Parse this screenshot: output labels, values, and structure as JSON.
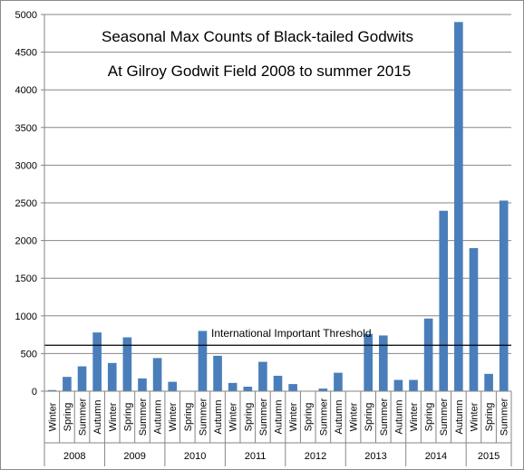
{
  "chart_data": {
    "type": "bar",
    "title": "Seasonal Max Counts of Black-tailed Godwits",
    "subtitle": "At Gilroy Godwit Field 2008 to summer 2015",
    "xlabel": "",
    "ylabel": "",
    "ylim": [
      0,
      5000
    ],
    "yticks": [
      "0",
      "500",
      "1000",
      "1500",
      "2000",
      "2500",
      "3000",
      "3500",
      "4000",
      "4500",
      "5000"
    ],
    "grid": "horizontal",
    "bar_color": "#4a7ebb",
    "years": [
      "2008",
      "2009",
      "2010",
      "2011",
      "2012",
      "2013",
      "2014",
      "2015"
    ],
    "categories": [
      {
        "season": "Winter",
        "year": "2008",
        "value": 15
      },
      {
        "season": "Spring",
        "year": "2008",
        "value": 190
      },
      {
        "season": "Summer",
        "year": "2008",
        "value": 330
      },
      {
        "season": "Autumn",
        "year": "2008",
        "value": 780
      },
      {
        "season": "Winter",
        "year": "2009",
        "value": 375
      },
      {
        "season": "Spring",
        "year": "2009",
        "value": 715
      },
      {
        "season": "Summer",
        "year": "2009",
        "value": 170
      },
      {
        "season": "Autumn",
        "year": "2009",
        "value": 440
      },
      {
        "season": "Winter",
        "year": "2010",
        "value": 125
      },
      {
        "season": "Spring",
        "year": "2010",
        "value": 0
      },
      {
        "season": "Summer",
        "year": "2010",
        "value": 800
      },
      {
        "season": "Autumn",
        "year": "2010",
        "value": 470
      },
      {
        "season": "Winter",
        "year": "2011",
        "value": 110
      },
      {
        "season": "Spring",
        "year": "2011",
        "value": 60
      },
      {
        "season": "Summer",
        "year": "2011",
        "value": 390
      },
      {
        "season": "Autumn",
        "year": "2011",
        "value": 205
      },
      {
        "season": "Winter",
        "year": "2012",
        "value": 95
      },
      {
        "season": "Spring",
        "year": "2012",
        "value": 0
      },
      {
        "season": "Summer",
        "year": "2012",
        "value": 35
      },
      {
        "season": "Autumn",
        "year": "2012",
        "value": 245
      },
      {
        "season": "Winter",
        "year": "2013",
        "value": 0
      },
      {
        "season": "Spring",
        "year": "2013",
        "value": 760
      },
      {
        "season": "Summer",
        "year": "2013",
        "value": 740
      },
      {
        "season": "Autumn",
        "year": "2013",
        "value": 150
      },
      {
        "season": "Winter",
        "year": "2014",
        "value": 150
      },
      {
        "season": "Spring",
        "year": "2014",
        "value": 965
      },
      {
        "season": "Summer",
        "year": "2014",
        "value": 2395
      },
      {
        "season": "Autumn",
        "year": "2014",
        "value": 4900
      },
      {
        "season": "Winter",
        "year": "2015",
        "value": 1900
      },
      {
        "season": "Spring",
        "year": "2015",
        "value": 230
      },
      {
        "season": "Summer",
        "year": "2015",
        "value": 2530
      }
    ],
    "threshold": {
      "label": "International Important Threshold",
      "value": 610,
      "color": "#000000"
    }
  }
}
